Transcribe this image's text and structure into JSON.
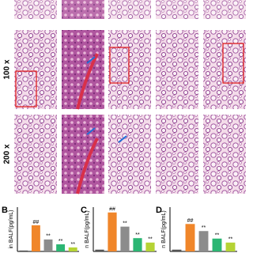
{
  "figure": {
    "row_labels": [
      "100 x",
      "200 x"
    ]
  },
  "chart_data": [
    {
      "type": "bar",
      "panel_label": "B",
      "ylabel": "in BALF(pg/mL)",
      "categories": [
        null,
        null,
        null,
        null,
        null
      ],
      "values": [
        2,
        59,
        27,
        16,
        9
      ],
      "colors": [
        "#555555",
        "#f0862a",
        "#8c8c8c",
        "#2bb673",
        "#b5d334"
      ],
      "annotations": [
        null,
        "##",
        "**",
        "**",
        "**"
      ],
      "ylim": [
        0,
        100
      ]
    },
    {
      "type": "bar",
      "panel_label": "C",
      "ylabel": "n BALF(pg/mL)",
      "categories": [
        null,
        null,
        null,
        null,
        null
      ],
      "values": [
        4,
        88,
        56,
        30,
        20
      ],
      "colors": [
        "#555555",
        "#f0862a",
        "#8c8c8c",
        "#2bb673",
        "#b5d334"
      ],
      "annotations": [
        null,
        "##",
        "**",
        "**",
        "**"
      ],
      "ylim": [
        0,
        100
      ]
    },
    {
      "type": "bar",
      "panel_label": "D",
      "ylabel": "n BALF(pg/mL)",
      "categories": [
        null,
        null,
        null,
        null,
        null
      ],
      "values": [
        4,
        62,
        46,
        29,
        20
      ],
      "colors": [
        "#555555",
        "#f0862a",
        "#8c8c8c",
        "#2bb673",
        "#b5d334"
      ],
      "annotations": [
        null,
        "##",
        "**",
        "**",
        "**"
      ],
      "ylim": [
        0,
        100
      ]
    }
  ]
}
